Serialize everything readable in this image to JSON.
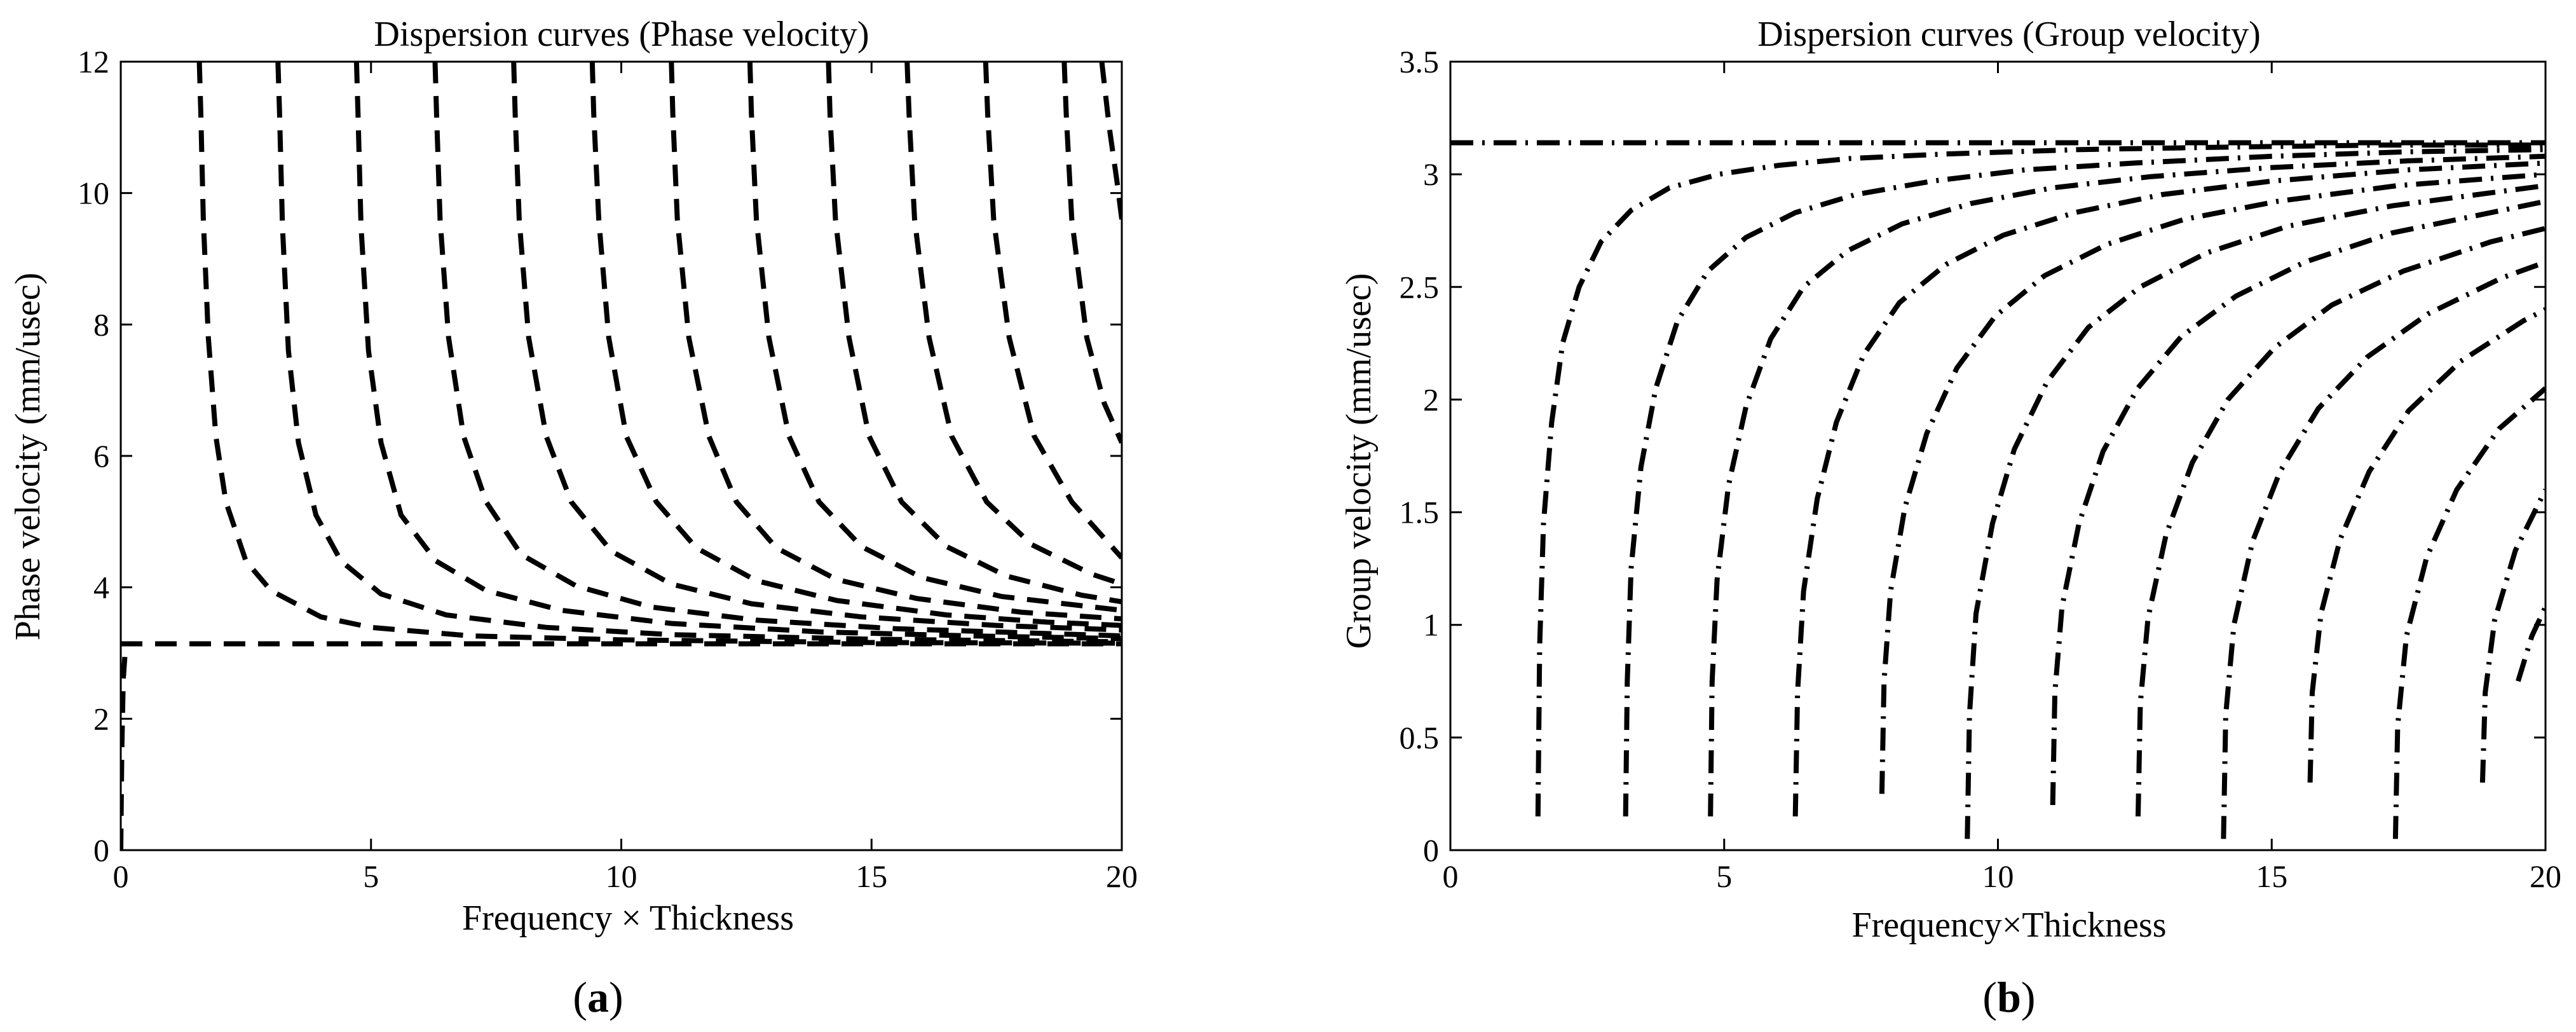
{
  "chart_data": [
    {
      "type": "line",
      "title": "Dispersion curves (Phase velocity)",
      "xlabel": "Frequency × Thickness",
      "ylabel": "Phase velocity (mm/usec)",
      "xlim": [
        0,
        20
      ],
      "ylim": [
        0,
        12
      ],
      "xticks": [
        "0",
        "5",
        "10",
        "15",
        "20"
      ],
      "yticks": [
        "0",
        "2",
        "4",
        "6",
        "8",
        "10",
        "12"
      ],
      "caption_letter": "a",
      "line_style": "dashed",
      "series": [
        {
          "x": [
            0,
            0.02,
            0.05,
            0.1
          ],
          "y": [
            0,
            1.5,
            2.6,
            3.14
          ]
        },
        {
          "x": [
            0,
            20
          ],
          "y": [
            3.14,
            3.14
          ]
        },
        {
          "x": [
            1.57,
            1.6,
            1.65,
            1.75,
            1.9,
            2.1,
            2.5,
            3.0,
            4,
            5,
            7,
            10,
            15,
            20
          ],
          "y": [
            12,
            11.2,
            9.6,
            7.8,
            6.3,
            5.3,
            4.4,
            3.95,
            3.55,
            3.39,
            3.26,
            3.2,
            3.16,
            3.15
          ]
        },
        {
          "x": [
            3.14,
            3.17,
            3.23,
            3.35,
            3.55,
            3.9,
            4.4,
            5.2,
            6.5,
            8.5,
            11,
            15,
            20
          ],
          "y": [
            12,
            11.3,
            9.5,
            7.6,
            6.2,
            5.1,
            4.4,
            3.9,
            3.58,
            3.39,
            3.28,
            3.21,
            3.17
          ]
        },
        {
          "x": [
            4.71,
            4.74,
            4.8,
            4.95,
            5.2,
            5.6,
            6.3,
            7.3,
            8.8,
            11,
            14,
            17,
            20
          ],
          "y": [
            12,
            11.2,
            9.5,
            7.6,
            6.2,
            5.1,
            4.4,
            3.95,
            3.65,
            3.45,
            3.32,
            3.26,
            3.22
          ]
        },
        {
          "x": [
            6.28,
            6.31,
            6.38,
            6.55,
            6.85,
            7.3,
            8,
            9.1,
            10.6,
            12.7,
            15.5,
            20
          ],
          "y": [
            12,
            11.2,
            9.6,
            7.8,
            6.3,
            5.3,
            4.5,
            4.02,
            3.7,
            3.5,
            3.37,
            3.26
          ]
        },
        {
          "x": [
            7.85,
            7.88,
            7.96,
            8.15,
            8.5,
            9,
            9.8,
            11,
            12.6,
            14.8,
            17.5,
            20
          ],
          "y": [
            12,
            11.2,
            9.6,
            7.8,
            6.3,
            5.3,
            4.55,
            4.05,
            3.75,
            3.55,
            3.42,
            3.35
          ]
        },
        {
          "x": [
            9.42,
            9.45,
            9.55,
            9.75,
            10.1,
            10.7,
            11.5,
            12.7,
            14.3,
            16.5,
            18.5,
            20
          ],
          "y": [
            12,
            11.2,
            9.6,
            7.8,
            6.3,
            5.3,
            4.6,
            4.1,
            3.8,
            3.58,
            3.47,
            3.42
          ]
        },
        {
          "x": [
            11.0,
            11.03,
            11.12,
            11.35,
            11.75,
            12.3,
            13.1,
            14.3,
            15.9,
            18,
            20
          ],
          "y": [
            12,
            11.2,
            9.6,
            7.8,
            6.3,
            5.3,
            4.6,
            4.12,
            3.83,
            3.62,
            3.52
          ]
        },
        {
          "x": [
            12.57,
            12.6,
            12.7,
            12.95,
            13.35,
            13.95,
            14.8,
            16,
            17.6,
            20
          ],
          "y": [
            12,
            11.2,
            9.6,
            7.8,
            6.3,
            5.3,
            4.62,
            4.15,
            3.86,
            3.65
          ]
        },
        {
          "x": [
            14.14,
            14.17,
            14.28,
            14.55,
            14.95,
            15.6,
            16.5,
            17.7,
            19.2,
            20
          ],
          "y": [
            12,
            11.2,
            9.6,
            7.8,
            6.3,
            5.3,
            4.62,
            4.17,
            3.88,
            3.78
          ]
        },
        {
          "x": [
            15.71,
            15.75,
            15.86,
            16.15,
            16.6,
            17.3,
            18.2,
            19.4,
            20
          ],
          "y": [
            12,
            11.2,
            9.6,
            7.8,
            6.3,
            5.3,
            4.65,
            4.2,
            4.05
          ]
        },
        {
          "x": [
            17.28,
            17.32,
            17.44,
            17.75,
            18.25,
            19.0,
            20
          ],
          "y": [
            12,
            11.2,
            9.6,
            7.8,
            6.3,
            5.3,
            4.45
          ]
        },
        {
          "x": [
            18.85,
            18.89,
            19.0,
            19.3,
            19.65,
            20
          ],
          "y": [
            12,
            11.2,
            9.6,
            7.8,
            6.8,
            6.2
          ]
        },
        {
          "x": [
            19.6,
            19.75,
            19.9,
            20
          ],
          "y": [
            12,
            11,
            10.2,
            9.6
          ]
        }
      ]
    },
    {
      "type": "line",
      "title": "Dispersion curves (Group velocity)",
      "xlabel": "Frequency×Thickness",
      "ylabel": "Group velocity (mm/usec)",
      "xlim": [
        0,
        20
      ],
      "ylim": [
        0,
        3.5
      ],
      "xticks": [
        "0",
        "5",
        "10",
        "15",
        "20"
      ],
      "yticks": [
        "0",
        "0.5",
        "1",
        "1.5",
        "2",
        "2.5",
        "3",
        "3.5"
      ],
      "caption_letter": "b",
      "line_style": "dashdot",
      "series": [
        {
          "x": [
            0,
            20
          ],
          "y": [
            3.14,
            3.14
          ]
        },
        {
          "x": [
            1.6,
            1.63,
            1.7,
            1.85,
            2.05,
            2.35,
            2.75,
            3.3,
            4.0,
            4.9,
            6.0,
            7.3,
            9,
            11.5,
            14,
            17,
            20
          ],
          "y": [
            0.15,
            0.9,
            1.45,
            1.9,
            2.25,
            2.5,
            2.7,
            2.84,
            2.94,
            3.0,
            3.04,
            3.07,
            3.09,
            3.11,
            3.12,
            3.13,
            3.13
          ]
        },
        {
          "x": [
            3.2,
            3.23,
            3.3,
            3.48,
            3.75,
            4.15,
            4.7,
            5.4,
            6.3,
            7.4,
            8.8,
            10.5,
            12.5,
            15,
            17.5,
            20
          ],
          "y": [
            0.15,
            0.75,
            1.25,
            1.7,
            2.05,
            2.35,
            2.57,
            2.72,
            2.83,
            2.91,
            2.97,
            3.02,
            3.05,
            3.08,
            3.1,
            3.11
          ]
        },
        {
          "x": [
            4.75,
            4.78,
            4.87,
            5.08,
            5.4,
            5.85,
            6.45,
            7.25,
            8.25,
            9.5,
            11,
            12.8,
            15,
            17.5,
            20
          ],
          "y": [
            0.15,
            0.75,
            1.2,
            1.62,
            1.97,
            2.27,
            2.5,
            2.66,
            2.78,
            2.87,
            2.94,
            2.99,
            3.03,
            3.06,
            3.08
          ]
        },
        {
          "x": [
            6.3,
            6.34,
            6.45,
            6.7,
            7.05,
            7.55,
            8.2,
            9.05,
            10.1,
            11.4,
            13,
            15,
            17.5,
            20
          ],
          "y": [
            0.15,
            0.7,
            1.15,
            1.56,
            1.9,
            2.2,
            2.43,
            2.6,
            2.73,
            2.83,
            2.91,
            2.97,
            3.02,
            3.05
          ]
        },
        {
          "x": [
            7.88,
            7.92,
            8.04,
            8.3,
            8.7,
            9.25,
            9.95,
            10.85,
            12,
            13.4,
            15.1,
            17.3,
            20
          ],
          "y": [
            0.25,
            0.75,
            1.15,
            1.52,
            1.85,
            2.14,
            2.37,
            2.55,
            2.69,
            2.8,
            2.88,
            2.95,
            3.0
          ]
        },
        {
          "x": [
            9.44,
            9.48,
            9.6,
            9.9,
            10.3,
            10.9,
            11.65,
            12.6,
            13.8,
            15.3,
            17.2,
            20
          ],
          "y": [
            0.05,
            0.6,
            1.05,
            1.45,
            1.78,
            2.08,
            2.32,
            2.5,
            2.65,
            2.77,
            2.86,
            2.95
          ]
        },
        {
          "x": [
            11.0,
            11.04,
            11.17,
            11.48,
            11.92,
            12.55,
            13.35,
            14.35,
            15.6,
            17.2,
            20
          ],
          "y": [
            0.2,
            0.7,
            1.08,
            1.45,
            1.77,
            2.05,
            2.28,
            2.46,
            2.61,
            2.74,
            2.88
          ]
        },
        {
          "x": [
            12.56,
            12.6,
            12.74,
            13.07,
            13.55,
            14.2,
            15.05,
            16.1,
            17.4,
            19,
            20
          ],
          "y": [
            0.15,
            0.65,
            1.03,
            1.4,
            1.72,
            2.0,
            2.23,
            2.42,
            2.57,
            2.7,
            2.76
          ]
        },
        {
          "x": [
            14.12,
            14.16,
            14.31,
            14.65,
            15.15,
            15.85,
            16.75,
            17.85,
            19.2,
            20
          ],
          "y": [
            0.05,
            0.6,
            1.0,
            1.37,
            1.68,
            1.96,
            2.19,
            2.38,
            2.54,
            2.61
          ]
        },
        {
          "x": [
            15.7,
            15.74,
            15.9,
            16.25,
            16.78,
            17.5,
            18.45,
            19.6,
            20
          ],
          "y": [
            0.3,
            0.7,
            1.05,
            1.38,
            1.68,
            1.95,
            2.17,
            2.35,
            2.4
          ]
        },
        {
          "x": [
            17.26,
            17.3,
            17.46,
            17.83,
            18.38,
            19.15,
            20
          ],
          "y": [
            0.05,
            0.55,
            0.95,
            1.3,
            1.6,
            1.87,
            2.05
          ]
        },
        {
          "x": [
            18.85,
            18.9,
            19.07,
            19.45,
            20
          ],
          "y": [
            0.3,
            0.7,
            1.02,
            1.33,
            1.6
          ]
        },
        {
          "x": [
            19.5,
            19.75,
            20
          ],
          "y": [
            0.75,
            0.95,
            1.08
          ]
        }
      ]
    }
  ]
}
